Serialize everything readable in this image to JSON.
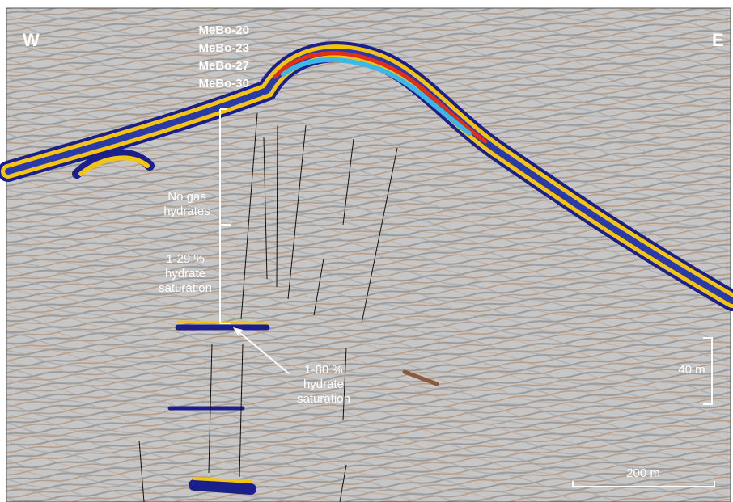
{
  "section": {
    "west": "W",
    "east": "E",
    "boreholes": [
      "MeBo-20",
      "MeBo-23",
      "MeBo-27",
      "MeBo-30"
    ],
    "annotations": {
      "no_gas": [
        "No gas",
        "hydrates"
      ],
      "low": [
        "1-29 %",
        "hydrate",
        "saturation"
      ],
      "high": [
        "1-80 %",
        "hydrate",
        "saturation"
      ]
    },
    "scale_vertical": "40 m",
    "scale_horizontal": "200 m"
  }
}
